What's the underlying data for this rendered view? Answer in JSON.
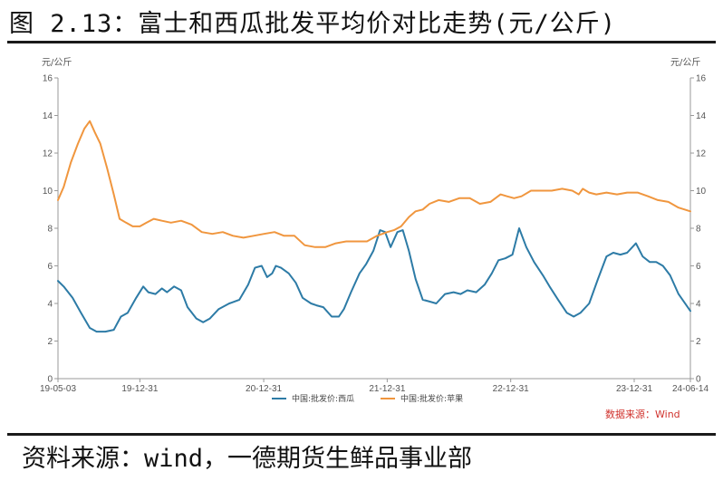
{
  "figure": {
    "title": "图 2.13：富士和西瓜批发平均价对比走势(元/公斤)",
    "source": "资料来源：wind，一德期货生鲜品事业部"
  },
  "chart_data": {
    "type": "line",
    "unit_left": "元/公斤",
    "unit_right": "元/公斤",
    "ylim": [
      0,
      16
    ],
    "yticks": [
      0,
      2,
      4,
      6,
      8,
      10,
      12,
      14,
      16
    ],
    "xlim": [
      "2019-05-03",
      "2024-06-14"
    ],
    "xticks": [
      {
        "label": "19-05-03",
        "date": "2019-05-03"
      },
      {
        "label": "19-12-31",
        "date": "2019-12-31"
      },
      {
        "label": "20-12-31",
        "date": "2020-12-31"
      },
      {
        "label": "21-12-31",
        "date": "2021-12-31"
      },
      {
        "label": "22-12-31",
        "date": "2022-12-31"
      },
      {
        "label": "23-12-31",
        "date": "2023-12-31"
      },
      {
        "label": "24-06-14",
        "date": "2024-06-14"
      }
    ],
    "grid": false,
    "legend_position": "bottom",
    "credit": "数据来源：Wind",
    "series": [
      {
        "name": "中国:批发价:西瓜",
        "color": "#2d7ba6",
        "points": [
          [
            "2019-05-03",
            5.2
          ],
          [
            "2019-05-20",
            4.9
          ],
          [
            "2019-06-15",
            4.3
          ],
          [
            "2019-07-10",
            3.5
          ],
          [
            "2019-08-05",
            2.7
          ],
          [
            "2019-08-25",
            2.5
          ],
          [
            "2019-09-20",
            2.5
          ],
          [
            "2019-10-15",
            2.6
          ],
          [
            "2019-11-05",
            3.3
          ],
          [
            "2019-11-25",
            3.5
          ],
          [
            "2019-12-20",
            4.3
          ],
          [
            "2020-01-10",
            4.9
          ],
          [
            "2020-01-25",
            4.6
          ],
          [
            "2020-02-15",
            4.5
          ],
          [
            "2020-03-05",
            4.8
          ],
          [
            "2020-03-20",
            4.6
          ],
          [
            "2020-04-10",
            4.9
          ],
          [
            "2020-05-01",
            4.7
          ],
          [
            "2020-05-20",
            3.8
          ],
          [
            "2020-06-15",
            3.2
          ],
          [
            "2020-07-05",
            3.0
          ],
          [
            "2020-07-25",
            3.2
          ],
          [
            "2020-08-20",
            3.7
          ],
          [
            "2020-09-20",
            4.0
          ],
          [
            "2020-10-20",
            4.2
          ],
          [
            "2020-11-15",
            5.0
          ],
          [
            "2020-12-05",
            5.9
          ],
          [
            "2020-12-25",
            6.0
          ],
          [
            "2021-01-10",
            5.4
          ],
          [
            "2021-01-25",
            5.6
          ],
          [
            "2021-02-05",
            6.0
          ],
          [
            "2021-02-20",
            5.9
          ],
          [
            "2021-03-15",
            5.6
          ],
          [
            "2021-04-05",
            5.1
          ],
          [
            "2021-04-25",
            4.3
          ],
          [
            "2021-05-20",
            4.0
          ],
          [
            "2021-06-05",
            3.9
          ],
          [
            "2021-06-25",
            3.8
          ],
          [
            "2021-07-20",
            3.3
          ],
          [
            "2021-08-10",
            3.3
          ],
          [
            "2021-08-25",
            3.7
          ],
          [
            "2021-09-15",
            4.6
          ],
          [
            "2021-10-10",
            5.6
          ],
          [
            "2021-10-30",
            6.1
          ],
          [
            "2021-11-20",
            6.8
          ],
          [
            "2021-12-10",
            7.9
          ],
          [
            "2021-12-25",
            7.8
          ],
          [
            "2022-01-10",
            7.0
          ],
          [
            "2022-01-30",
            7.8
          ],
          [
            "2022-02-15",
            7.9
          ],
          [
            "2022-03-05",
            6.8
          ],
          [
            "2022-03-25",
            5.3
          ],
          [
            "2022-04-15",
            4.2
          ],
          [
            "2022-05-05",
            4.1
          ],
          [
            "2022-05-25",
            4.0
          ],
          [
            "2022-06-20",
            4.5
          ],
          [
            "2022-07-15",
            4.6
          ],
          [
            "2022-08-05",
            4.5
          ],
          [
            "2022-08-25",
            4.7
          ],
          [
            "2022-09-20",
            4.6
          ],
          [
            "2022-10-15",
            5.0
          ],
          [
            "2022-11-05",
            5.6
          ],
          [
            "2022-11-25",
            6.3
          ],
          [
            "2022-12-15",
            6.4
          ],
          [
            "2023-01-05",
            6.6
          ],
          [
            "2023-01-25",
            8.0
          ],
          [
            "2023-02-15",
            7.0
          ],
          [
            "2023-03-10",
            6.2
          ],
          [
            "2023-04-05",
            5.5
          ],
          [
            "2023-04-25",
            4.9
          ],
          [
            "2023-05-20",
            4.2
          ],
          [
            "2023-06-15",
            3.5
          ],
          [
            "2023-07-05",
            3.3
          ],
          [
            "2023-07-25",
            3.5
          ],
          [
            "2023-08-20",
            4.0
          ],
          [
            "2023-09-15",
            5.3
          ],
          [
            "2023-10-10",
            6.5
          ],
          [
            "2023-10-30",
            6.7
          ],
          [
            "2023-11-20",
            6.6
          ],
          [
            "2023-12-10",
            6.7
          ],
          [
            "2024-01-05",
            7.2
          ],
          [
            "2024-01-25",
            6.5
          ],
          [
            "2024-02-15",
            6.2
          ],
          [
            "2024-03-05",
            6.2
          ],
          [
            "2024-03-25",
            6.0
          ],
          [
            "2024-04-15",
            5.5
          ],
          [
            "2024-05-10",
            4.5
          ],
          [
            "2024-06-14",
            3.6
          ]
        ]
      },
      {
        "name": "中国:批发价:苹果",
        "color": "#f0963e",
        "points": [
          [
            "2019-05-03",
            9.5
          ],
          [
            "2019-05-20",
            10.2
          ],
          [
            "2019-06-10",
            11.5
          ],
          [
            "2019-07-01",
            12.5
          ],
          [
            "2019-07-20",
            13.3
          ],
          [
            "2019-08-05",
            13.7
          ],
          [
            "2019-08-20",
            13.1
          ],
          [
            "2019-09-05",
            12.5
          ],
          [
            "2019-09-25",
            11.2
          ],
          [
            "2019-10-15",
            9.8
          ],
          [
            "2019-11-01",
            8.5
          ],
          [
            "2019-11-20",
            8.3
          ],
          [
            "2019-12-10",
            8.1
          ],
          [
            "2019-12-31",
            8.1
          ],
          [
            "2020-01-20",
            8.3
          ],
          [
            "2020-02-10",
            8.5
          ],
          [
            "2020-03-05",
            8.4
          ],
          [
            "2020-04-01",
            8.3
          ],
          [
            "2020-05-01",
            8.4
          ],
          [
            "2020-06-01",
            8.2
          ],
          [
            "2020-07-01",
            7.8
          ],
          [
            "2020-08-01",
            7.7
          ],
          [
            "2020-09-01",
            7.8
          ],
          [
            "2020-10-01",
            7.6
          ],
          [
            "2020-11-01",
            7.5
          ],
          [
            "2020-12-01",
            7.6
          ],
          [
            "2021-01-01",
            7.7
          ],
          [
            "2021-02-01",
            7.8
          ],
          [
            "2021-03-01",
            7.6
          ],
          [
            "2021-04-01",
            7.6
          ],
          [
            "2021-05-01",
            7.1
          ],
          [
            "2021-06-01",
            7.0
          ],
          [
            "2021-07-01",
            7.0
          ],
          [
            "2021-08-01",
            7.2
          ],
          [
            "2021-09-01",
            7.3
          ],
          [
            "2021-10-01",
            7.3
          ],
          [
            "2021-11-01",
            7.3
          ],
          [
            "2021-12-01",
            7.6
          ],
          [
            "2021-12-31",
            7.8
          ],
          [
            "2022-01-20",
            7.9
          ],
          [
            "2022-02-10",
            8.1
          ],
          [
            "2022-03-05",
            8.6
          ],
          [
            "2022-03-25",
            8.9
          ],
          [
            "2022-04-15",
            9.0
          ],
          [
            "2022-05-05",
            9.3
          ],
          [
            "2022-06-01",
            9.5
          ],
          [
            "2022-07-01",
            9.4
          ],
          [
            "2022-08-01",
            9.6
          ],
          [
            "2022-09-01",
            9.6
          ],
          [
            "2022-10-01",
            9.3
          ],
          [
            "2022-11-01",
            9.4
          ],
          [
            "2022-12-01",
            9.8
          ],
          [
            "2022-12-20",
            9.7
          ],
          [
            "2023-01-10",
            9.6
          ],
          [
            "2023-02-01",
            9.7
          ],
          [
            "2023-03-01",
            10.0
          ],
          [
            "2023-04-01",
            10.0
          ],
          [
            "2023-05-01",
            10.0
          ],
          [
            "2023-06-01",
            10.1
          ],
          [
            "2023-07-01",
            10.0
          ],
          [
            "2023-07-20",
            9.8
          ],
          [
            "2023-08-01",
            10.1
          ],
          [
            "2023-08-20",
            9.9
          ],
          [
            "2023-09-10",
            9.8
          ],
          [
            "2023-10-10",
            9.9
          ],
          [
            "2023-11-10",
            9.8
          ],
          [
            "2023-12-10",
            9.9
          ],
          [
            "2024-01-10",
            9.9
          ],
          [
            "2024-02-10",
            9.7
          ],
          [
            "2024-03-10",
            9.5
          ],
          [
            "2024-04-10",
            9.4
          ],
          [
            "2024-05-10",
            9.1
          ],
          [
            "2024-06-14",
            8.9
          ]
        ]
      }
    ]
  }
}
